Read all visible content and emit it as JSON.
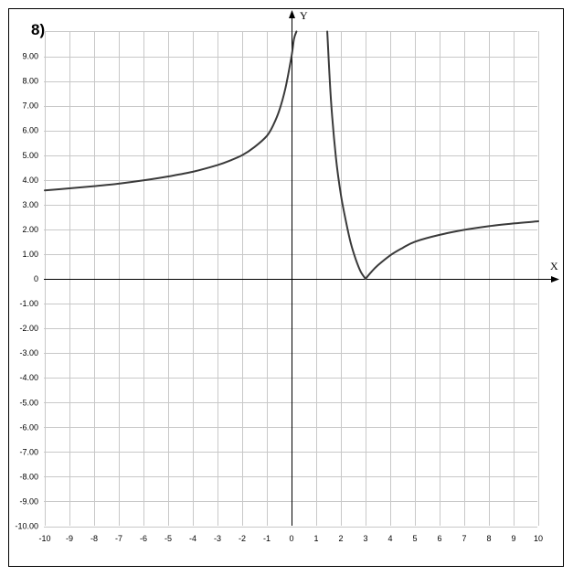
{
  "problem_label": "8)",
  "chart_data": {
    "type": "line",
    "title": "",
    "xlabel": "X",
    "ylabel": "Y",
    "xlim": [
      -10,
      10
    ],
    "ylim": [
      -10,
      10
    ],
    "grid": true,
    "x_ticks": [
      "-10",
      "-9",
      "-8",
      "-7",
      "-6",
      "-5",
      "-4",
      "-3",
      "-2",
      "-1",
      "0",
      "1",
      "2",
      "3",
      "4",
      "5",
      "6",
      "7",
      "8",
      "9",
      "10"
    ],
    "y_ticks": [
      "9.00",
      "8.00",
      "7.00",
      "6.00",
      "5.00",
      "4.00",
      "3.00",
      "2.00",
      "1.00",
      "0",
      "-1.00",
      "-2.00",
      "-3.00",
      "-4.00",
      "-5.00",
      "-6.00",
      "-7.00",
      "-8.00",
      "-9.00",
      "-10.00"
    ],
    "series": [
      {
        "color": "#3a3a3a",
        "segments": [
          {
            "x": [
              -10,
              -9,
              -8,
              -7,
              -6,
              -5,
              -4,
              -3,
              -2.5,
              -2,
              -1.5,
              -1,
              -0.75,
              -0.5,
              -0.25,
              0,
              0.1,
              0.2
            ],
            "y": [
              3.58,
              3.66,
              3.75,
              3.85,
              3.98,
              4.14,
              4.33,
              4.6,
              4.78,
              5.0,
              5.33,
              5.78,
              6.2,
              6.8,
              7.7,
              9.0,
              9.7,
              10.0
            ]
          },
          {
            "x": [
              1.45,
              1.6,
              1.8,
              2.0,
              2.2,
              2.4,
              2.6,
              2.8,
              3.0
            ],
            "y": [
              10.0,
              7.2,
              4.9,
              3.4,
              2.35,
              1.45,
              0.8,
              0.3,
              0.0
            ]
          },
          {
            "x": [
              3.0,
              3.25,
              3.5,
              4.0,
              4.5,
              5.0,
              6.0,
              7.0,
              8.0,
              9.0,
              10.0
            ],
            "y": [
              0.0,
              0.3,
              0.55,
              0.95,
              1.25,
              1.5,
              1.78,
              1.98,
              2.13,
              2.24,
              2.33
            ]
          }
        ]
      }
    ]
  }
}
